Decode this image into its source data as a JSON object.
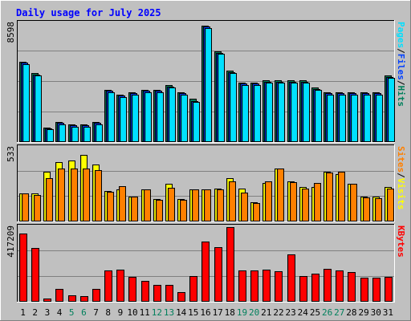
{
  "chart_data": {
    "type": "bar",
    "title": "Daily usage for July 2025",
    "categories": [
      "1",
      "2",
      "3",
      "4",
      "5",
      "6",
      "7",
      "8",
      "9",
      "10",
      "11",
      "12",
      "13",
      "14",
      "15",
      "16",
      "17",
      "18",
      "19",
      "20",
      "21",
      "22",
      "23",
      "24",
      "25",
      "26",
      "27",
      "28",
      "29",
      "30",
      "31"
    ],
    "weekend_days": [
      "5",
      "6",
      "12",
      "13",
      "19",
      "20",
      "26",
      "27"
    ],
    "colors": {
      "background": "#c0c0c0",
      "title": "#0000ff",
      "weekday_label": "#000000",
      "weekend_label": "#00805c",
      "hits": "#00805c",
      "files": "#0040ff",
      "pages": "#00e0ff",
      "visits": "#ffff00",
      "sites": "#ff8000",
      "kbytes": "#ff0000"
    },
    "panels": [
      {
        "id": "hits-files-pages",
        "max_label": "8598",
        "ymax": 8598,
        "legend": [
          {
            "text": "Pages",
            "color": "#00e0ff"
          },
          {
            "text": "/",
            "color": "#000000"
          },
          {
            "text": "Files",
            "color": "#0040ff"
          },
          {
            "text": "/",
            "color": "#000000"
          },
          {
            "text": "Hits",
            "color": "#00805c"
          }
        ],
        "series": [
          {
            "name": "Hits",
            "color": "#00805c",
            "values": [
              5830,
              5010,
              1070,
              1470,
              1300,
              1300,
              1470,
              3790,
              3450,
              3620,
              3790,
              3790,
              4130,
              3620,
              3110,
              8430,
              6540,
              5160,
              4310,
              4310,
              4470,
              4470,
              4470,
              4470,
              3960,
              3620,
              3620,
              3620,
              3620,
              3620,
              4820
            ]
          },
          {
            "name": "Files",
            "color": "#0040ff",
            "values": [
              5760,
              4900,
              1000,
              1380,
              1200,
              1230,
              1380,
              3690,
              3350,
              3520,
              3690,
              3690,
              4000,
              3520,
              2990,
              8350,
              6450,
              5050,
              4220,
              4220,
              4380,
              4380,
              4380,
              4380,
              3860,
              3520,
              3520,
              3520,
              3520,
              3520,
              4730
            ]
          },
          {
            "name": "Pages",
            "color": "#00e0ff",
            "values": [
              5650,
              4800,
              920,
              1270,
              1100,
              1130,
              1270,
              3620,
              3280,
              3450,
              3620,
              3620,
              3960,
              3450,
              2930,
              8250,
              6370,
              4980,
              4130,
              4130,
              4300,
              4300,
              4300,
              4300,
              3790,
              3450,
              3450,
              3450,
              3450,
              3450,
              4650
            ]
          }
        ]
      },
      {
        "id": "visits-sites",
        "max_label": "533",
        "ymax": 533,
        "legend": [
          {
            "text": "Sites",
            "color": "#ff8000"
          },
          {
            "text": "/",
            "color": "#000000"
          },
          {
            "text": "Visits",
            "color": "#ffff00"
          }
        ],
        "series": [
          {
            "name": "Visits",
            "color": "#ffff00",
            "values": [
              205,
              200,
              360,
              430,
              440,
              480,
              410,
              220,
              230,
              180,
              230,
              160,
              270,
              160,
              230,
              230,
              240,
              310,
              235,
              140,
              280,
              380,
              290,
              250,
              250,
              360,
              340,
              270,
              180,
              180,
              250
            ]
          },
          {
            "name": "Sites",
            "color": "#ff8000",
            "values": [
              200,
              190,
              315,
              380,
              380,
              380,
              370,
              215,
              255,
              180,
              230,
              155,
              245,
              155,
              230,
              230,
              230,
              290,
              210,
              135,
              290,
              380,
              285,
              235,
              280,
              355,
              360,
              275,
              175,
              170,
              240
            ]
          }
        ]
      },
      {
        "id": "kbytes",
        "max_label": "417209",
        "ymax": 417209,
        "legend": [
          {
            "text": "KBytes",
            "color": "#ff0000"
          }
        ],
        "series": [
          {
            "name": "KBytes",
            "color": "#ff0000",
            "values": [
              380000,
              300000,
              20000,
              70000,
              35000,
              30000,
              70000,
              175000,
              180000,
              140000,
              115000,
              95000,
              95000,
              55000,
              145000,
              335000,
              305000,
              417209,
              175000,
              175000,
              180000,
              170000,
              265000,
              145000,
              155000,
              185000,
              175000,
              165000,
              135000,
              135000,
              140000
            ]
          }
        ]
      }
    ]
  }
}
